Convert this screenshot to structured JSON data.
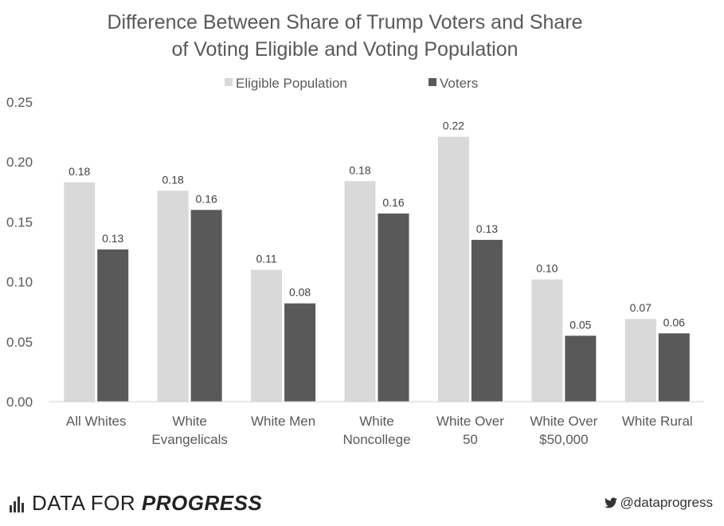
{
  "chart_data": {
    "type": "bar",
    "title_line1": "Difference Between Share of Trump Voters and Share",
    "title_line2": "of Voting Eligible and Voting Population",
    "categories": [
      [
        "All Whites"
      ],
      [
        "White",
        "Evangelicals"
      ],
      [
        "White Men"
      ],
      [
        "White",
        "Noncollege"
      ],
      [
        "White Over",
        "50"
      ],
      [
        "White Over",
        "$50,000"
      ],
      [
        "White Rural"
      ]
    ],
    "series": [
      {
        "name": "Eligible Population",
        "color": "#d9d9d9",
        "values": [
          0.183,
          0.176,
          0.11,
          0.184,
          0.221,
          0.102,
          0.069
        ],
        "labels": [
          "0.18",
          "0.18",
          "0.11",
          "0.18",
          "0.22",
          "0.10",
          "0.07"
        ]
      },
      {
        "name": "Voters",
        "color": "#595959",
        "values": [
          0.127,
          0.16,
          0.082,
          0.157,
          0.135,
          0.055,
          0.057
        ],
        "labels": [
          "0.13",
          "0.16",
          "0.08",
          "0.16",
          "0.13",
          "0.05",
          "0.06"
        ]
      }
    ],
    "yticks": [
      "0.00",
      "0.05",
      "0.10",
      "0.15",
      "0.20",
      "0.25"
    ],
    "ylim": [
      0,
      0.25
    ],
    "legend_position": "top-center",
    "grid": false
  },
  "footer": {
    "brand_regular": "DATA FOR ",
    "brand_bold": "PROGRESS",
    "handle": "@dataprogress"
  }
}
